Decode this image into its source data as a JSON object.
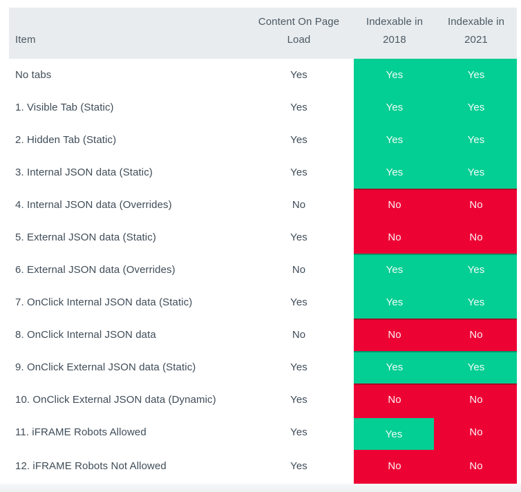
{
  "header": {
    "item": "Item",
    "content_on_page_load": "Content On Page\nLoad",
    "indexable_2018": "Indexable in\n2018",
    "indexable_2021": "Indexable in\n2021"
  },
  "colors": {
    "green": "#03CE93",
    "red": "#ED0234",
    "header_bg": "#E8ECEE",
    "label_text": "#3F4C58",
    "header_text": "#4C5964",
    "band_text": "#FFFFFF"
  },
  "chart_data": {
    "type": "table",
    "title": "",
    "columns": [
      "Item",
      "Content On Page Load",
      "Indexable in 2018",
      "Indexable in 2021"
    ],
    "rows": [
      {
        "item": "No tabs",
        "content_on_page_load": "Yes",
        "indexable_2018": "Yes",
        "indexable_2021": "Yes",
        "band_2018": "green",
        "band_2021": "green"
      },
      {
        "item": "1. Visible Tab (Static)",
        "content_on_page_load": "Yes",
        "indexable_2018": "Yes",
        "indexable_2021": "Yes",
        "band_2018": "green",
        "band_2021": "green"
      },
      {
        "item": "2. Hidden Tab (Static)",
        "content_on_page_load": "Yes",
        "indexable_2018": "Yes",
        "indexable_2021": "Yes",
        "band_2018": "green",
        "band_2021": "green"
      },
      {
        "item": "3. Internal JSON data (Static)",
        "content_on_page_load": "Yes",
        "indexable_2018": "Yes",
        "indexable_2021": "Yes",
        "band_2018": "green",
        "band_2021": "green"
      },
      {
        "item": "4. Internal JSON data (Overrides)",
        "content_on_page_load": "No",
        "indexable_2018": "No",
        "indexable_2021": "No",
        "band_2018": "red",
        "band_2021": "red"
      },
      {
        "item": "5. External JSON data (Static)",
        "content_on_page_load": "Yes",
        "indexable_2018": "No",
        "indexable_2021": "No",
        "band_2018": "red",
        "band_2021": "red"
      },
      {
        "item": "6. External JSON data (Overrides)",
        "content_on_page_load": "No",
        "indexable_2018": "Yes",
        "indexable_2021": "Yes",
        "band_2018": "green",
        "band_2021": "green"
      },
      {
        "item": "7. OnClick Internal JSON data (Static)",
        "content_on_page_load": "Yes",
        "indexable_2018": "Yes",
        "indexable_2021": "Yes",
        "band_2018": "green",
        "band_2021": "green"
      },
      {
        "item": "8. OnClick Internal JSON data",
        "content_on_page_load": "No",
        "indexable_2018": "No",
        "indexable_2021": "No",
        "band_2018": "red",
        "band_2021": "red"
      },
      {
        "item": "9. OnClick External JSON data (Static)",
        "content_on_page_load": "Yes",
        "indexable_2018": "Yes",
        "indexable_2021": "Yes",
        "band_2018": "green",
        "band_2021": "green"
      },
      {
        "item": "10. OnClick External JSON data (Dynamic)",
        "content_on_page_load": "Yes",
        "indexable_2018": "No",
        "indexable_2021": "No",
        "band_2018": "red",
        "band_2021": "red"
      },
      {
        "item": "11. iFRAME Robots Allowed",
        "content_on_page_load": "Yes",
        "indexable_2018": "Yes",
        "indexable_2021": "No",
        "band_2018": "red",
        "band_2021": "red",
        "inset_2018": "green"
      },
      {
        "item": "12. iFRAME Robots Not Allowed",
        "content_on_page_load": "Yes",
        "indexable_2018": "No",
        "indexable_2021": "No",
        "band_2018": "red",
        "band_2021": "red"
      }
    ]
  }
}
